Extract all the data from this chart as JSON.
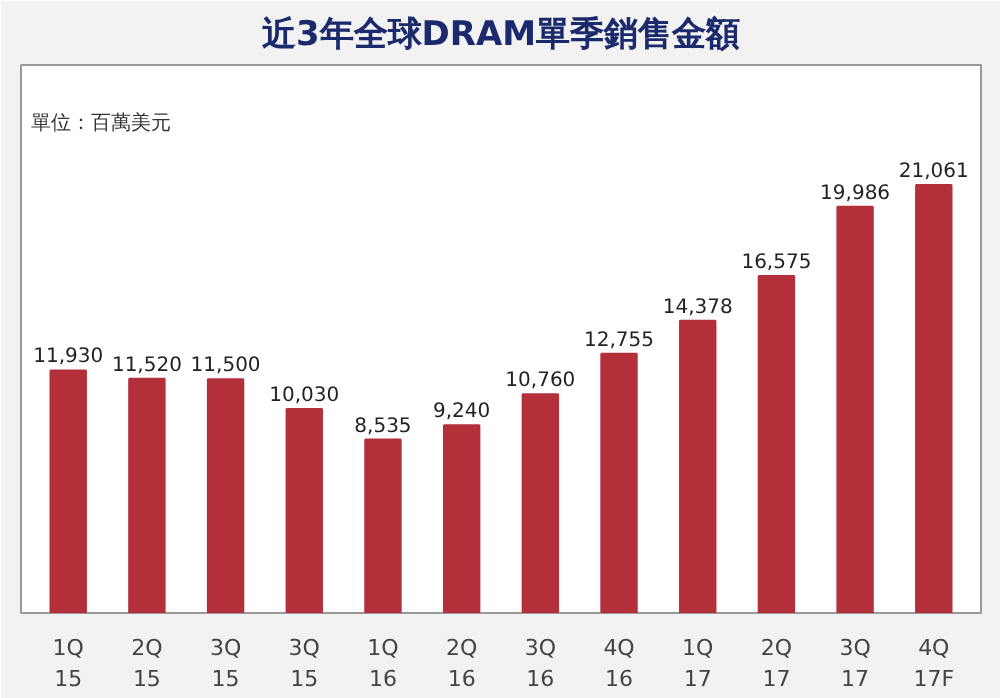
{
  "chart_data": {
    "type": "bar",
    "title": "近3年全球DRAM單季銷售金額",
    "categories": [
      "1Q\n15",
      "2Q\n15",
      "3Q\n15",
      "3Q\n15",
      "1Q\n16",
      "2Q\n16",
      "3Q\n16",
      "4Q\n16",
      "1Q\n17",
      "2Q\n17",
      "3Q\n17",
      "4Q\n17F"
    ],
    "values": [
      11930,
      11520,
      11500,
      10030,
      8535,
      9240,
      10760,
      12755,
      14378,
      16575,
      19986,
      21061
    ],
    "color": "#b3303b",
    "value_labels": [
      "11,930",
      "11,520",
      "11,500",
      "10,030",
      "8,535",
      "9,240",
      "10,760",
      "12,755",
      "14,378",
      "16,575",
      "19,986",
      "21,061"
    ],
    "annotations": [
      "單位：百萬美元"
    ]
  }
}
